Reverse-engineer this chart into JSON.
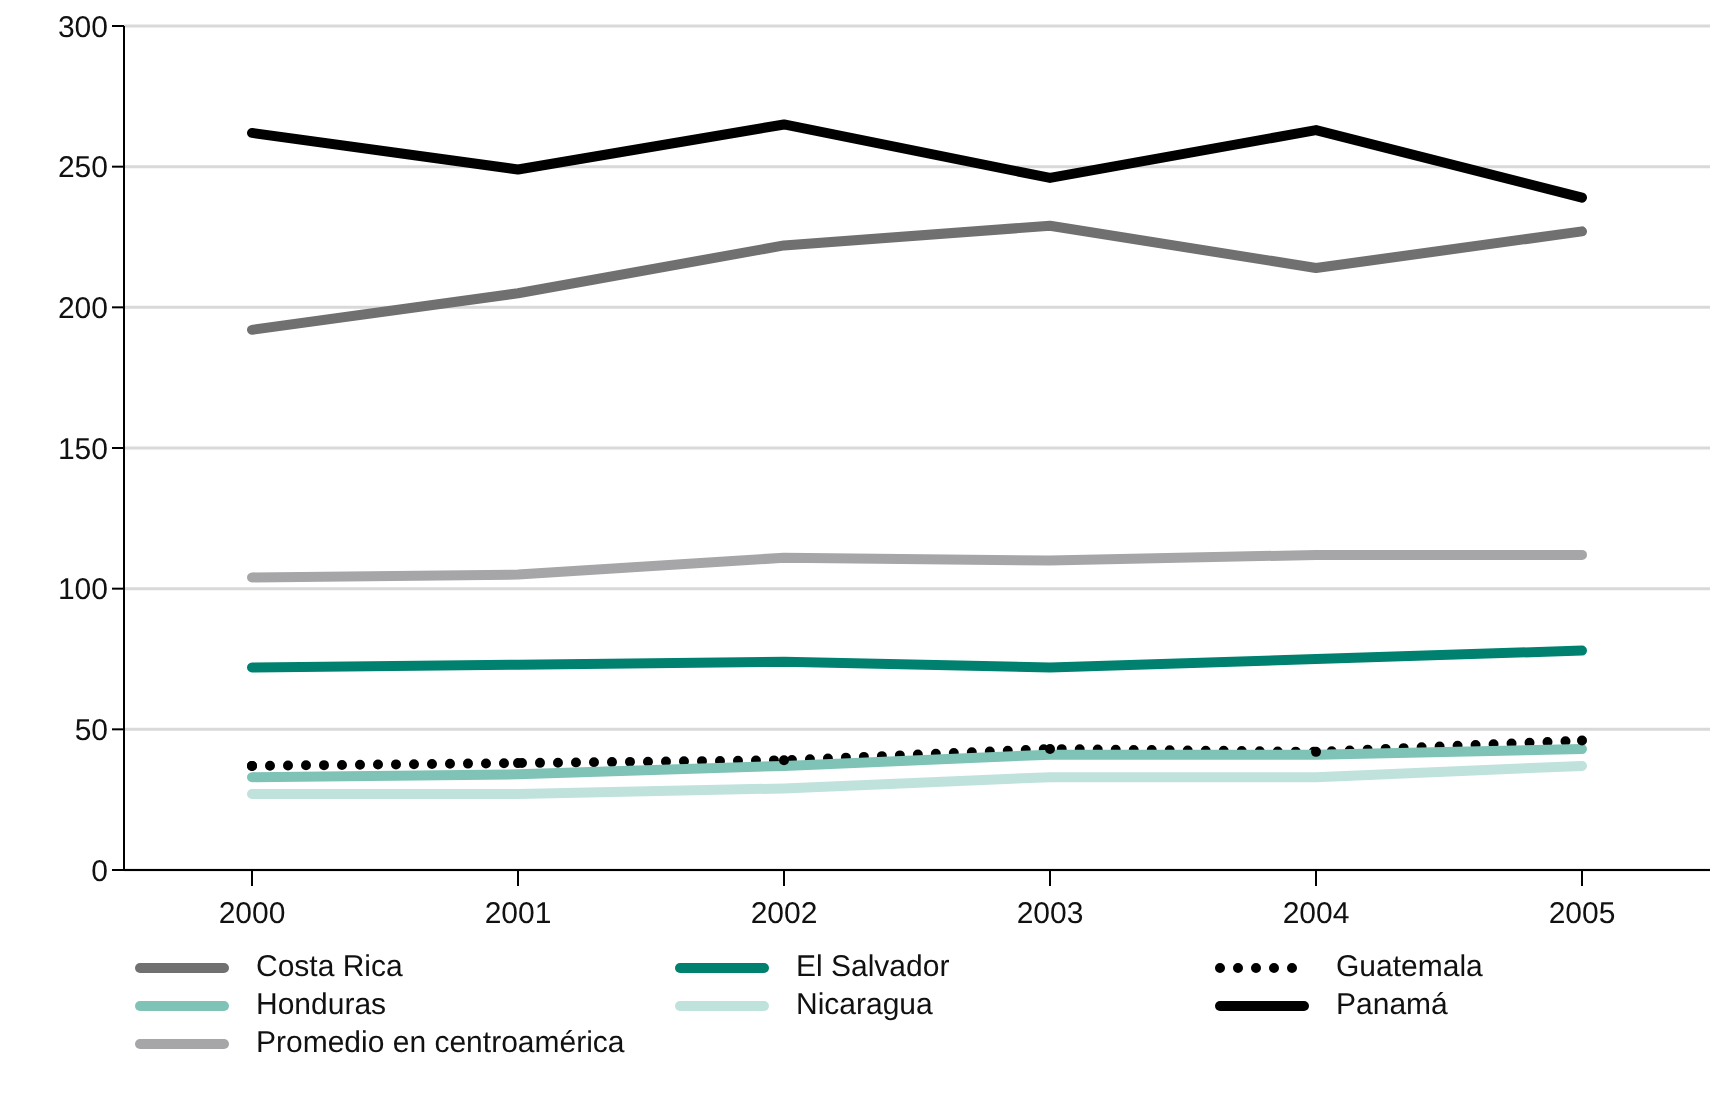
{
  "chart_data": {
    "type": "line",
    "categories": [
      "2000",
      "2001",
      "2002",
      "2003",
      "2004",
      "2005"
    ],
    "series": [
      {
        "name": "Costa Rica",
        "color": "#707070",
        "values": [
          192,
          205,
          222,
          229,
          214,
          227
        ]
      },
      {
        "name": "El Salvador",
        "color": "#00806e",
        "values": [
          72,
          73,
          74,
          72,
          75,
          78
        ]
      },
      {
        "name": "Guatemala",
        "color": "#000000",
        "line_style": "dotted",
        "marker": "circle",
        "values": [
          37,
          38,
          39,
          43,
          42,
          46
        ]
      },
      {
        "name": "Honduras",
        "color": "#7fc2b6",
        "values": [
          33,
          34,
          37,
          41,
          41,
          43
        ]
      },
      {
        "name": "Nicaragua",
        "color": "#c0e2dc",
        "values": [
          27,
          27,
          29,
          33,
          33,
          37
        ]
      },
      {
        "name": "Panamá",
        "color": "#000000",
        "values": [
          262,
          249,
          265,
          246,
          263,
          239
        ]
      },
      {
        "name": "Promedio en centroamérica",
        "color": "#a6a6a8",
        "values": [
          104,
          105,
          111,
          110,
          112,
          112
        ]
      }
    ],
    "ylim": [
      0,
      300
    ],
    "yticks": [
      0,
      50,
      100,
      150,
      200,
      250,
      300
    ],
    "grid": "y",
    "legend": "bottom",
    "line_style": "solid",
    "marker": "none"
  }
}
